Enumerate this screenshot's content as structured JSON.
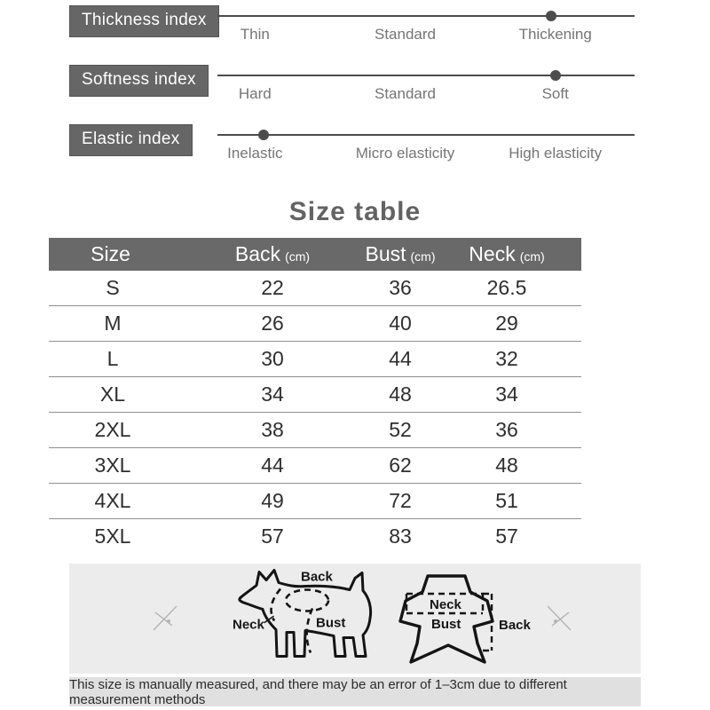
{
  "indexes": [
    {
      "label": "Thickness index",
      "options": [
        "Thin",
        "Standard",
        "Thickening"
      ],
      "selected": "Thickening",
      "level_percent": 80
    },
    {
      "label": "Softness index",
      "options": [
        "Hard",
        "Standard",
        "Soft"
      ],
      "selected": "Soft",
      "level_percent": 81
    },
    {
      "label": "Elastic index",
      "options": [
        "Inelastic",
        "Micro elasticity",
        "High elasticity"
      ],
      "selected": "Inelastic",
      "level_percent": 11
    }
  ],
  "size_table": {
    "title": "Size table",
    "columns": [
      {
        "label": "Size",
        "unit": ""
      },
      {
        "label": "Back",
        "unit": "(cm)"
      },
      {
        "label": "Bust",
        "unit": "(cm)"
      },
      {
        "label": "Neck",
        "unit": "(cm)"
      }
    ],
    "rows": [
      {
        "size": "S",
        "back": "22",
        "bust": "36",
        "neck": "26.5"
      },
      {
        "size": "M",
        "back": "26",
        "bust": "40",
        "neck": "29"
      },
      {
        "size": "L",
        "back": "30",
        "bust": "44",
        "neck": "32"
      },
      {
        "size": "XL",
        "back": "34",
        "bust": "48",
        "neck": "34"
      },
      {
        "size": "2XL",
        "back": "38",
        "bust": "52",
        "neck": "36"
      },
      {
        "size": "3XL",
        "back": "44",
        "bust": "62",
        "neck": "48"
      },
      {
        "size": "4XL",
        "back": "49",
        "bust": "72",
        "neck": "51"
      },
      {
        "size": "5XL",
        "back": "57",
        "bust": "83",
        "neck": "57"
      }
    ]
  },
  "measure_guide": {
    "dog": {
      "back": "Back",
      "neck": "Neck",
      "bust": "Bust"
    },
    "garment": {
      "neck": "Neck",
      "bust": "Bust",
      "back": "Back"
    }
  },
  "footer": {
    "note": "This size is manually measured, and there may be an error of 1–3cm due to different measurement methods"
  },
  "colors": {
    "index_label_bg": "#666666",
    "slider_line": "#4c4c4c",
    "table_header_bg": "#696969",
    "row_divider": "#8f8f8f",
    "panel_bg": "#ececec",
    "footer_bg": "#e0e0e0",
    "muted_text": "#757575",
    "dark_text": "#2f2f2f"
  }
}
